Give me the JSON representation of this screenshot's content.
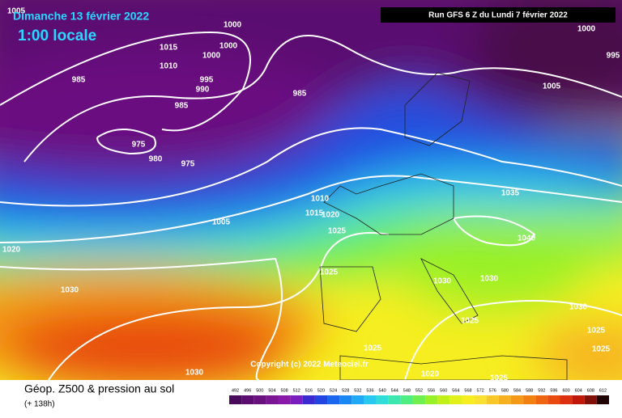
{
  "header": {
    "date": "Dimanche 13 février 2022",
    "time": "1:00 locale",
    "run": "Run GFS 6 Z du Lundi 7 février 2022"
  },
  "copyright": "Copyright (c) 2022 Meteociel.fr",
  "footer": {
    "title": "Géop. Z500 & pression au sol",
    "lead": "(+ 138h)"
  },
  "isobar_labels": [
    "1005",
    "1000",
    "1000",
    "1015",
    "1000",
    "1010",
    "995",
    "990",
    "985",
    "985",
    "985",
    "975",
    "980",
    "975",
    "1000",
    "995",
    "1005",
    "1010",
    "1015",
    "1020",
    "1005",
    "1025",
    "1020",
    "1030",
    "1025",
    "1035",
    "1040",
    "1030",
    "1030",
    "1030",
    "1025",
    "1025",
    "1025",
    "1025",
    "1020",
    "1025",
    "1030"
  ],
  "colorbar": {
    "labels": [
      "492",
      "496",
      "500",
      "504",
      "508",
      "512",
      "516",
      "520",
      "524",
      "528",
      "532",
      "536",
      "540",
      "544",
      "548",
      "552",
      "556",
      "560",
      "564",
      "568",
      "572",
      "576",
      "580",
      "584",
      "588",
      "592",
      "596",
      "600",
      "604",
      "608",
      "612"
    ],
    "colors": [
      "#4a0a5a",
      "#5a0d6e",
      "#6a1180",
      "#7a1594",
      "#8a18a8",
      "#7a1ec0",
      "#3a2ad0",
      "#2244e0",
      "#1a66ee",
      "#1a88f4",
      "#20aaf6",
      "#28c8f0",
      "#30ddd8",
      "#3ce8b0",
      "#50ee80",
      "#70f050",
      "#98f028",
      "#c0f018",
      "#e0f018",
      "#f6ee20",
      "#fae030",
      "#f8c828",
      "#f6b020",
      "#f49a18",
      "#f28010",
      "#ee6410",
      "#e84a10",
      "#dc3010",
      "#c01808",
      "#801008",
      "#200404"
    ]
  }
}
